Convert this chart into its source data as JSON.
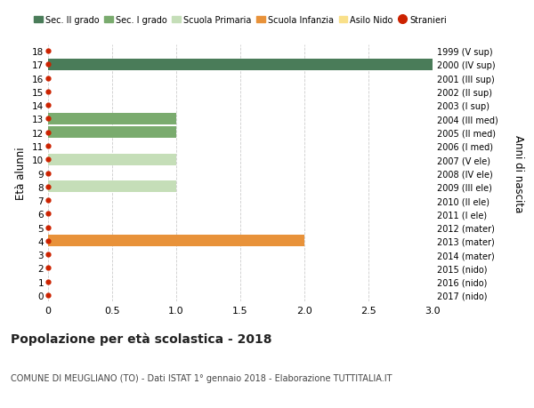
{
  "ages": [
    0,
    1,
    2,
    3,
    4,
    5,
    6,
    7,
    8,
    9,
    10,
    11,
    12,
    13,
    14,
    15,
    16,
    17,
    18
  ],
  "right_labels": [
    "2017 (nido)",
    "2016 (nido)",
    "2015 (nido)",
    "2014 (mater)",
    "2013 (mater)",
    "2012 (mater)",
    "2011 (I ele)",
    "2010 (II ele)",
    "2009 (III ele)",
    "2008 (IV ele)",
    "2007 (V ele)",
    "2006 (I med)",
    "2005 (II med)",
    "2004 (III med)",
    "2003 (I sup)",
    "2002 (II sup)",
    "2001 (III sup)",
    "2000 (IV sup)",
    "1999 (V sup)"
  ],
  "bars": [
    {
      "age": 17,
      "value": 3.0,
      "color": "#4a7c59",
      "category": "Sec. II grado"
    },
    {
      "age": 13,
      "value": 1.0,
      "color": "#7aab6e",
      "category": "Sec. I grado"
    },
    {
      "age": 12,
      "value": 1.0,
      "color": "#7aab6e",
      "category": "Sec. I grado"
    },
    {
      "age": 10,
      "value": 1.0,
      "color": "#c5deb8",
      "category": "Scuola Primaria"
    },
    {
      "age": 8,
      "value": 1.0,
      "color": "#c5deb8",
      "category": "Scuola Primaria"
    },
    {
      "age": 4,
      "value": 2.0,
      "color": "#e8923a",
      "category": "Scuola Infanzia"
    }
  ],
  "stranieri_ages": [
    0,
    1,
    2,
    3,
    4,
    5,
    6,
    7,
    8,
    9,
    10,
    11,
    12,
    13,
    14,
    15,
    16,
    17,
    18
  ],
  "stranieri_color": "#cc2200",
  "legend_items": [
    {
      "label": "Sec. II grado",
      "color": "#4a7c59",
      "type": "patch"
    },
    {
      "label": "Sec. I grado",
      "color": "#7aab6e",
      "type": "patch"
    },
    {
      "label": "Scuola Primaria",
      "color": "#c5deb8",
      "type": "patch"
    },
    {
      "label": "Scuola Infanzia",
      "color": "#e8923a",
      "type": "patch"
    },
    {
      "label": "Asilo Nido",
      "color": "#f9e08a",
      "type": "patch"
    },
    {
      "label": "Stranieri",
      "color": "#cc2200",
      "type": "dot"
    }
  ],
  "ylabel": "Età alunni",
  "right_ylabel": "Anni di nascita",
  "xlim": [
    0,
    3.0
  ],
  "ylim": [
    -0.5,
    18.5
  ],
  "xticks": [
    0,
    0.5,
    1.0,
    1.5,
    2.0,
    2.5,
    3.0
  ],
  "xtick_labels": [
    "0",
    "0.5",
    "1.0",
    "1.5",
    "2.0",
    "2.5",
    "3.0"
  ],
  "title": "Popolazione per età scolastica - 2018",
  "subtitle": "COMUNE DI MEUGLIANO (TO) - Dati ISTAT 1° gennaio 2018 - Elaborazione TUTTITALIA.IT",
  "bar_height": 0.85,
  "background_color": "#ffffff",
  "grid_color": "#cccccc"
}
